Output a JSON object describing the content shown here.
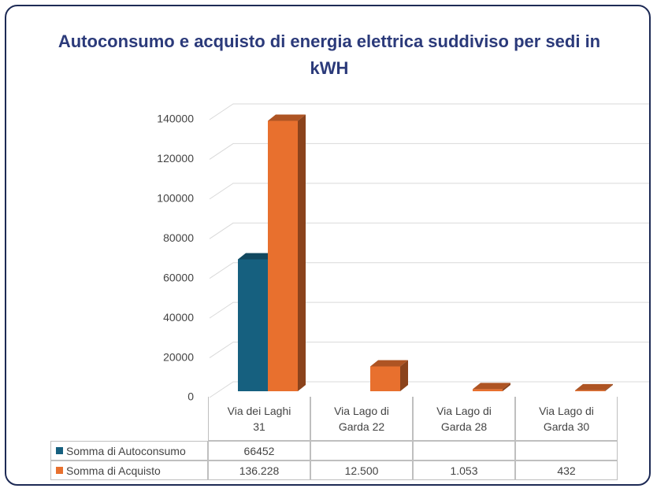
{
  "chart_data": {
    "type": "bar3d",
    "title": "Autoconsumo e acquisto di energia elettrica suddiviso per sedi in kWH",
    "categories": [
      "Via dei Laghi 31",
      "Via Lago di Garda 22",
      "Via Lago di Garda 28",
      "Via Lago di Garda 30"
    ],
    "series": [
      {
        "name": "Somma di Autoconsumo",
        "color": "#16607f",
        "values": [
          66452,
          null,
          null,
          null
        ]
      },
      {
        "name": "Somma di Acquisto",
        "color": "#e8702e",
        "values": [
          136228,
          12500,
          1053,
          432
        ],
        "value_labels": [
          "136.228",
          "12.500",
          "1.053",
          "432"
        ]
      }
    ],
    "ylim": [
      0,
      140000
    ],
    "yticks": [
      0,
      20000,
      40000,
      60000,
      80000,
      100000,
      120000,
      140000
    ],
    "grid": true
  }
}
